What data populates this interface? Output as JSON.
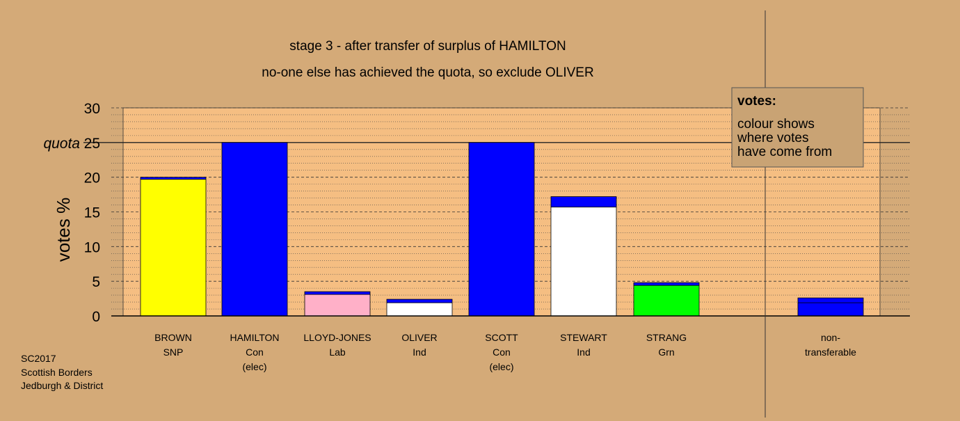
{
  "title": "stage 3 - after transfer of surplus of HAMILTON",
  "subtitle": "no-one else has achieved the quota, so exclude OLIVER",
  "ylabel": "votes %",
  "quota_label": "quota",
  "footer": [
    "SC2017",
    "Scottish Borders",
    "Jedburgh & District"
  ],
  "legend": {
    "heading": "votes:",
    "lines": [
      "colour shows",
      "where votes",
      "have come from"
    ]
  },
  "colors": {
    "background": "#d4aa78",
    "plot_area": "#f5be82",
    "SNP": "#ffff00",
    "Con": "#0000ff",
    "Lab": "#ffb0c8",
    "Ind": "#ffffff",
    "Grn": "#00ff00",
    "nontransferable": "#0000ff",
    "transfer": "#0000ff"
  },
  "chart_data": {
    "type": "bar",
    "stacked": true,
    "ylim": [
      0,
      30
    ],
    "yticks": [
      0,
      5,
      10,
      15,
      20,
      25,
      30
    ],
    "quota": 25,
    "grid": true,
    "legend_position": "top-right",
    "categories": [
      {
        "name": "BROWN",
        "party": "SNP",
        "note": ""
      },
      {
        "name": "HAMILTON",
        "party": "Con",
        "note": "(elec)"
      },
      {
        "name": "LLOYD-JONES",
        "party": "Lab",
        "note": ""
      },
      {
        "name": "OLIVER",
        "party": "Ind",
        "note": ""
      },
      {
        "name": "SCOTT",
        "party": "Con",
        "note": "(elec)"
      },
      {
        "name": "STEWART",
        "party": "Ind",
        "note": ""
      },
      {
        "name": "STRANG",
        "party": "Grn",
        "note": ""
      },
      {
        "name": "non-",
        "party": "transferable",
        "note": ""
      }
    ],
    "series": [
      {
        "values": [
          19.7,
          25.0,
          3.1,
          1.9,
          25.0,
          15.7,
          4.4,
          1.9
        ]
      },
      {
        "values": [
          0.3,
          0.0,
          0.4,
          0.5,
          0.0,
          1.5,
          0.4,
          0.7
        ]
      }
    ]
  }
}
